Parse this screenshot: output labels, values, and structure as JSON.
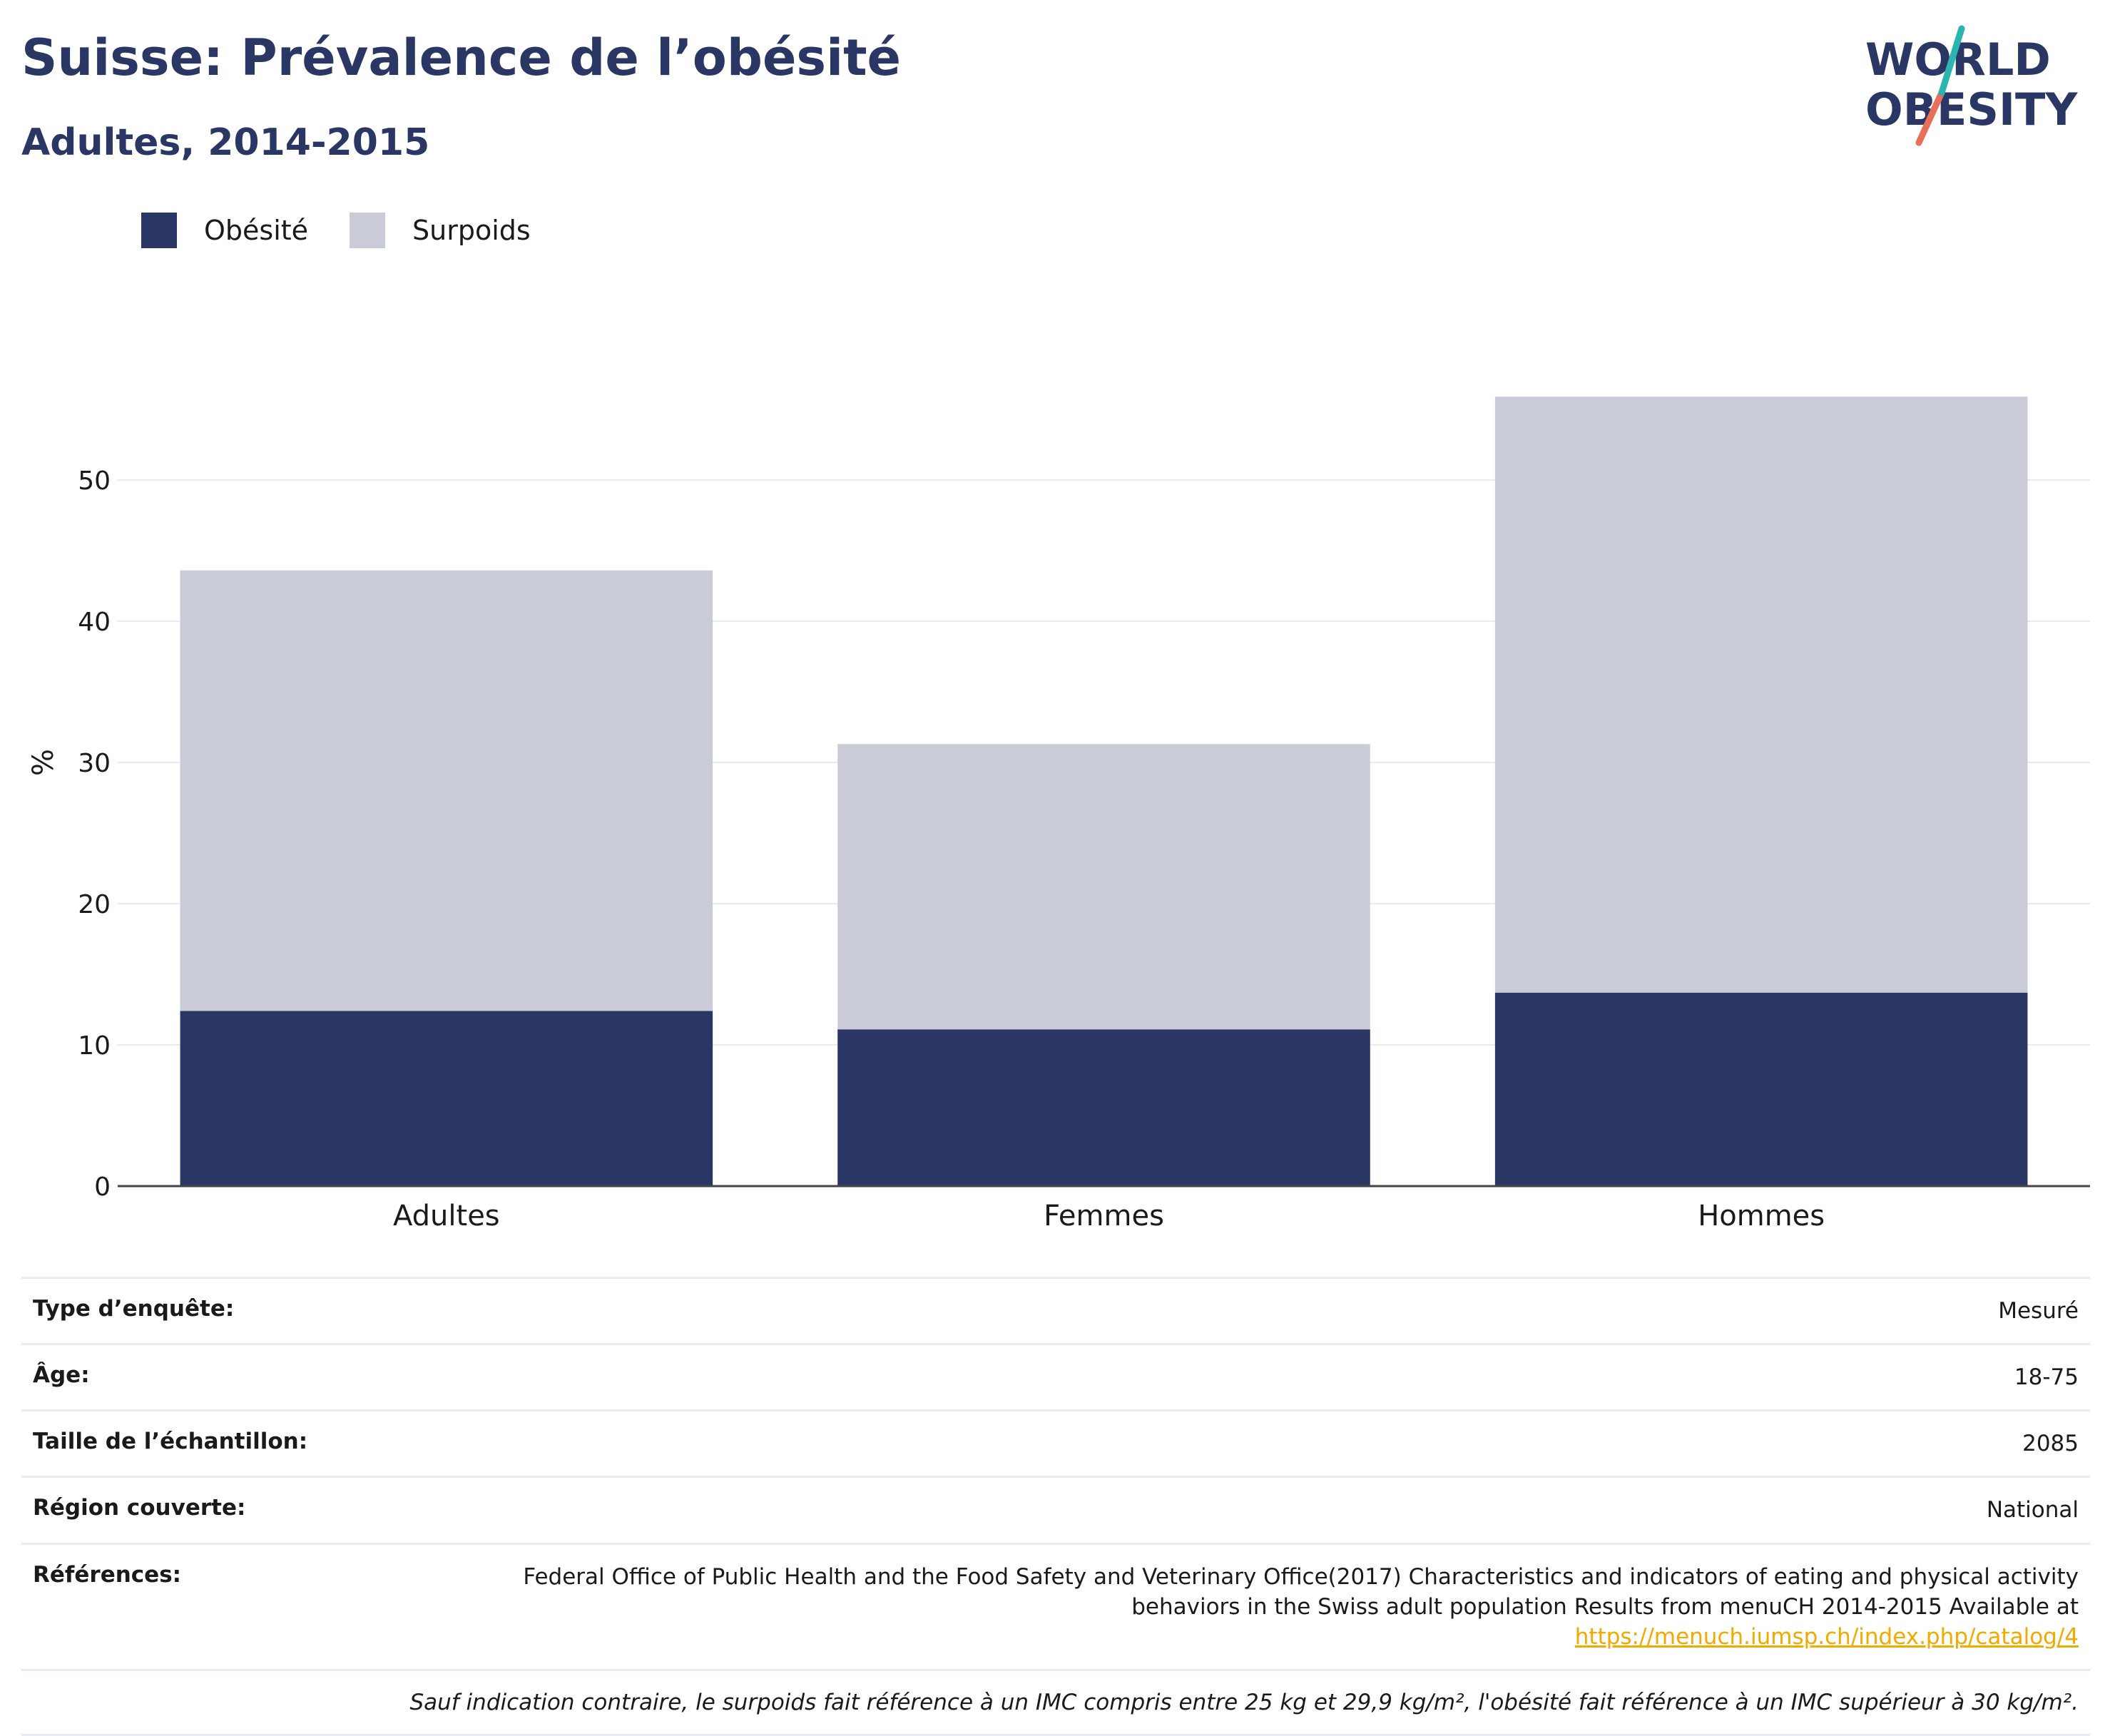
{
  "header": {
    "title": "Suisse: Prévalence de l’obésité",
    "subtitle": "Adultes, 2014-2015"
  },
  "logo": {
    "line1": "WORLD",
    "line2": "OBESITY"
  },
  "legend": [
    {
      "label": "Obésité",
      "color": "#2a3664"
    },
    {
      "label": "Surpoids",
      "color": "#c9ccd8"
    }
  ],
  "chart_data": {
    "type": "bar",
    "stacked": true,
    "categories": [
      "Adultes",
      "Femmes",
      "Hommes"
    ],
    "series": [
      {
        "name": "Obésité",
        "values": [
          12.4,
          11.1,
          13.7
        ],
        "color": "#2a3664"
      },
      {
        "name": "Surpoids",
        "values": [
          31.2,
          20.2,
          42.2
        ],
        "color": "#c9ccd8"
      }
    ],
    "ylabel": "%",
    "ylim": [
      0,
      60
    ],
    "yticks": [
      0,
      10,
      20,
      30,
      40,
      50
    ],
    "grid": true,
    "legend_position": "top-left"
  },
  "meta": {
    "rows": [
      {
        "key": "Type d’enquête:",
        "value": "Mesuré"
      },
      {
        "key": "Âge:",
        "value": "18-75"
      },
      {
        "key": "Taille de l’échantillon:",
        "value": "2085"
      },
      {
        "key": "Région couverte:",
        "value": "National"
      }
    ],
    "references_key": "Références:",
    "references_text": "Federal Office of Public Health and the Food Safety and Veterinary Office(2017) Characteristics and indicators of eating and physical activity behaviors in the Swiss adult population Results from menuCH 2014-2015 Available at",
    "references_link": "https://menuch.iumsp.ch/index.php/catalog/4",
    "note": "Sauf indication contraire, le surpoids fait référence à un IMC compris entre 25 kg et 29,9 kg/m², l'obésité fait référence à un IMC supérieur à 30 kg/m²."
  }
}
